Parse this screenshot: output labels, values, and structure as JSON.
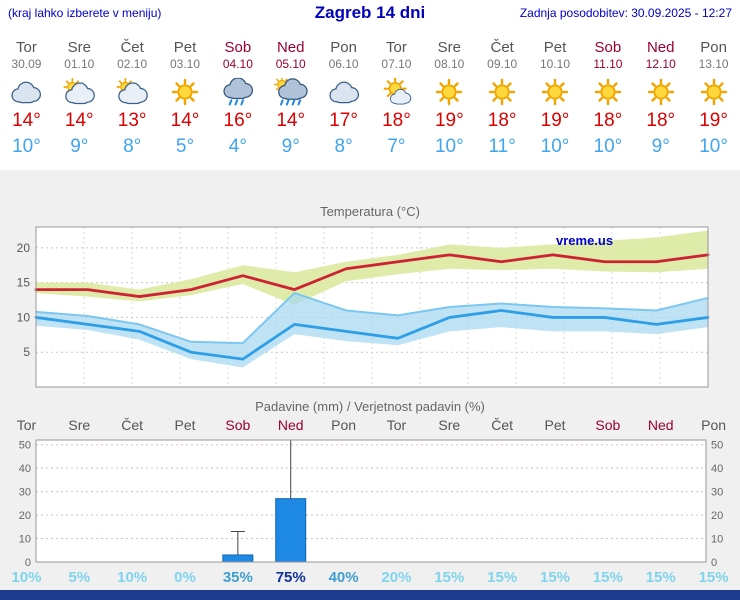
{
  "header": {
    "left_note": "(kraj lahko izberete v meniju)",
    "title": "Zagreb 14 dni",
    "updated": "Zadnja posodobitev: 30.09.2025 - 12:27"
  },
  "colors": {
    "header_blue": "#0000CC",
    "weekday_gray": "#555555",
    "weekend_red": "#990033",
    "tmax_red": "#DD0000",
    "tmin_blue": "#3FA5F0",
    "bottom_bar_navy": "#1D3C8F",
    "prob_low": "#7FD4EC",
    "prob_mid": "#3E9ECE",
    "prob_high": "#113399"
  },
  "days": [
    {
      "name": "Tor",
      "date": "30.09",
      "weekend": false,
      "icon": "cloudy",
      "tmax": "14°",
      "tmin": "10°"
    },
    {
      "name": "Sre",
      "date": "01.10",
      "weekend": false,
      "icon": "partly-cloudy",
      "tmax": "14°",
      "tmin": "9°"
    },
    {
      "name": "Čet",
      "date": "02.10",
      "weekend": false,
      "icon": "partly-cloudy",
      "tmax": "13°",
      "tmin": "8°"
    },
    {
      "name": "Pet",
      "date": "03.10",
      "weekend": false,
      "icon": "sunny",
      "tmax": "14°",
      "tmin": "5°"
    },
    {
      "name": "Sob",
      "date": "04.10",
      "weekend": true,
      "icon": "rain",
      "tmax": "16°",
      "tmin": "4°"
    },
    {
      "name": "Ned",
      "date": "05.10",
      "weekend": true,
      "icon": "rain-sun",
      "tmax": "14°",
      "tmin": "9°"
    },
    {
      "name": "Pon",
      "date": "06.10",
      "weekend": false,
      "icon": "cloudy",
      "tmax": "17°",
      "tmin": "8°"
    },
    {
      "name": "Tor",
      "date": "07.10",
      "weekend": false,
      "icon": "mostly-sunny",
      "tmax": "18°",
      "tmin": "7°"
    },
    {
      "name": "Sre",
      "date": "08.10",
      "weekend": false,
      "icon": "sunny",
      "tmax": "19°",
      "tmin": "10°"
    },
    {
      "name": "Čet",
      "date": "09.10",
      "weekend": false,
      "icon": "sunny",
      "tmax": "18°",
      "tmin": "11°"
    },
    {
      "name": "Pet",
      "date": "10.10",
      "weekend": false,
      "icon": "sunny",
      "tmax": "19°",
      "tmin": "10°"
    },
    {
      "name": "Sob",
      "date": "11.10",
      "weekend": true,
      "icon": "sunny",
      "tmax": "18°",
      "tmin": "10°"
    },
    {
      "name": "Ned",
      "date": "12.10",
      "weekend": true,
      "icon": "sunny",
      "tmax": "18°",
      "tmin": "9°"
    },
    {
      "name": "Pon",
      "date": "13.10",
      "weekend": false,
      "icon": "sunny",
      "tmax": "19°",
      "tmin": "10°"
    }
  ],
  "chart_data": [
    {
      "type": "line",
      "title": "Temperatura (°C)",
      "watermark": "vreme.us",
      "x_count": 14,
      "ylim": [
        0,
        23
      ],
      "yticks": [
        5,
        10,
        15,
        20
      ],
      "grid": true,
      "grid_color": "#C8C8C8",
      "vgrid_color": "#DADADA",
      "series": [
        {
          "name": "max-temperature",
          "color": "#CC2233",
          "values": [
            14,
            14,
            13,
            14,
            16,
            14,
            17,
            18,
            19,
            18,
            19,
            18,
            18,
            19
          ]
        },
        {
          "name": "min-temperature",
          "color": "#2E9FE6",
          "values": [
            10,
            9,
            8,
            5,
            4,
            9,
            8,
            7,
            10,
            11,
            10,
            10,
            9,
            10
          ]
        }
      ],
      "bands": [
        {
          "name": "max-temperature-range",
          "color": "#DCE9A0",
          "opacity": 0.9,
          "upper": [
            15,
            15,
            14,
            15.5,
            17.5,
            16.5,
            18,
            19,
            20.5,
            20,
            20.5,
            21,
            21.5,
            22.5
          ],
          "lower": [
            13.5,
            13,
            12.3,
            13.2,
            14.8,
            11.8,
            15.2,
            16.2,
            17,
            16.8,
            17,
            16.6,
            16.5,
            17
          ]
        },
        {
          "name": "min-temperature-range",
          "color": "#A9D9F2",
          "opacity": 0.75,
          "edge": "#7CC7EF",
          "upper": [
            10.8,
            10.2,
            9,
            6.5,
            6.3,
            13.5,
            11,
            10.3,
            11.5,
            12,
            11.5,
            11.3,
            11,
            12.8
          ],
          "lower": [
            8.8,
            8.2,
            6.8,
            4,
            2.8,
            7.6,
            6.6,
            6,
            8,
            8.6,
            8,
            8,
            7.6,
            8.6
          ]
        }
      ]
    },
    {
      "type": "bar",
      "title": "Padavine (mm) / Verjetnost padavin (%)",
      "x_labels": [
        "Tor",
        "Sre",
        "Čet",
        "Pet",
        "Sob",
        "Ned",
        "Pon",
        "Tor",
        "Sre",
        "Čet",
        "Pet",
        "Sob",
        "Ned",
        "Pon"
      ],
      "weekend_flags": [
        false,
        false,
        false,
        false,
        true,
        true,
        false,
        false,
        false,
        false,
        false,
        true,
        true,
        false
      ],
      "values": [
        0,
        0,
        0,
        0,
        3,
        27,
        0,
        0,
        0,
        0,
        0,
        0,
        0,
        0
      ],
      "whisker_max": [
        0,
        0,
        0,
        0,
        13,
        52,
        0,
        0,
        0,
        0,
        0,
        0,
        0,
        0
      ],
      "ylim": [
        0,
        52
      ],
      "yticks": [
        0,
        10,
        20,
        30,
        40,
        50
      ],
      "ylabels_both_sides": true,
      "grid_color": "#E5B8B8",
      "bar_color": "#1E88E5",
      "bar_border": "#1266B0",
      "whisker_color": "#444444",
      "probabilities": [
        "10%",
        "5%",
        "10%",
        "0%",
        "35%",
        "75%",
        "40%",
        "20%",
        "15%",
        "15%",
        "15%",
        "15%",
        "15%",
        "15%"
      ],
      "prob_levels": [
        "low",
        "low",
        "low",
        "low",
        "mid",
        "high",
        "mid",
        "low",
        "low",
        "low",
        "low",
        "low",
        "low",
        "low"
      ]
    }
  ]
}
